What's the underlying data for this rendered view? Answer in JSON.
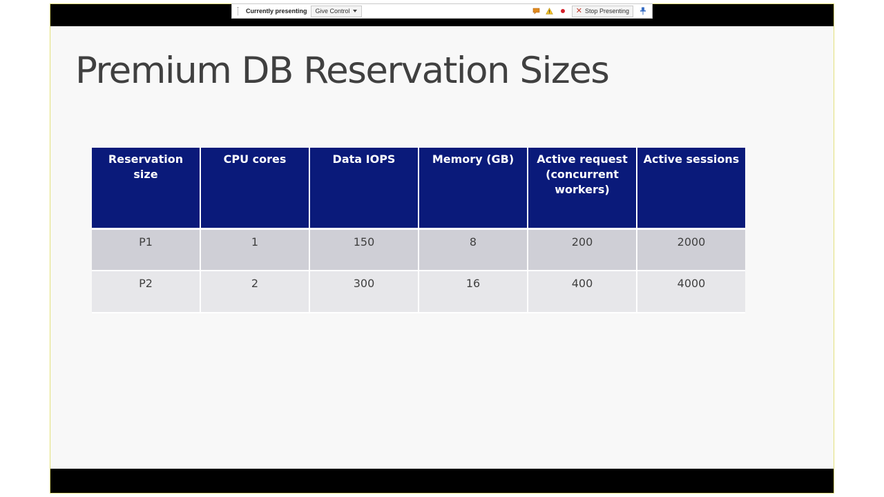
{
  "toolbar": {
    "presenting_label": "Currently presenting",
    "give_control_label": "Give Control",
    "stop_presenting_label": "Stop Presenting"
  },
  "colors": {
    "header_bg": "#0a1a7a",
    "row_odd_bg": "#cfcfd6",
    "row_even_bg": "#e7e7ea",
    "frame_bar": "#000000",
    "stop_icon": "#c0392b"
  },
  "icons": [
    "speech-bubble-icon",
    "warning-icon",
    "record-icon",
    "stop-x-icon",
    "pin-icon"
  ],
  "slide": {
    "title": "Premium DB Reservation Sizes",
    "table": {
      "headers": [
        "Reservation size",
        "CPU cores",
        "Data IOPS",
        "Memory (GB)",
        "Active request (concurrent workers)",
        "Active sessions"
      ],
      "rows": [
        [
          "P1",
          "1",
          "150",
          "8",
          "200",
          "2000"
        ],
        [
          "P2",
          "2",
          "300",
          "16",
          "400",
          "4000"
        ]
      ]
    }
  }
}
